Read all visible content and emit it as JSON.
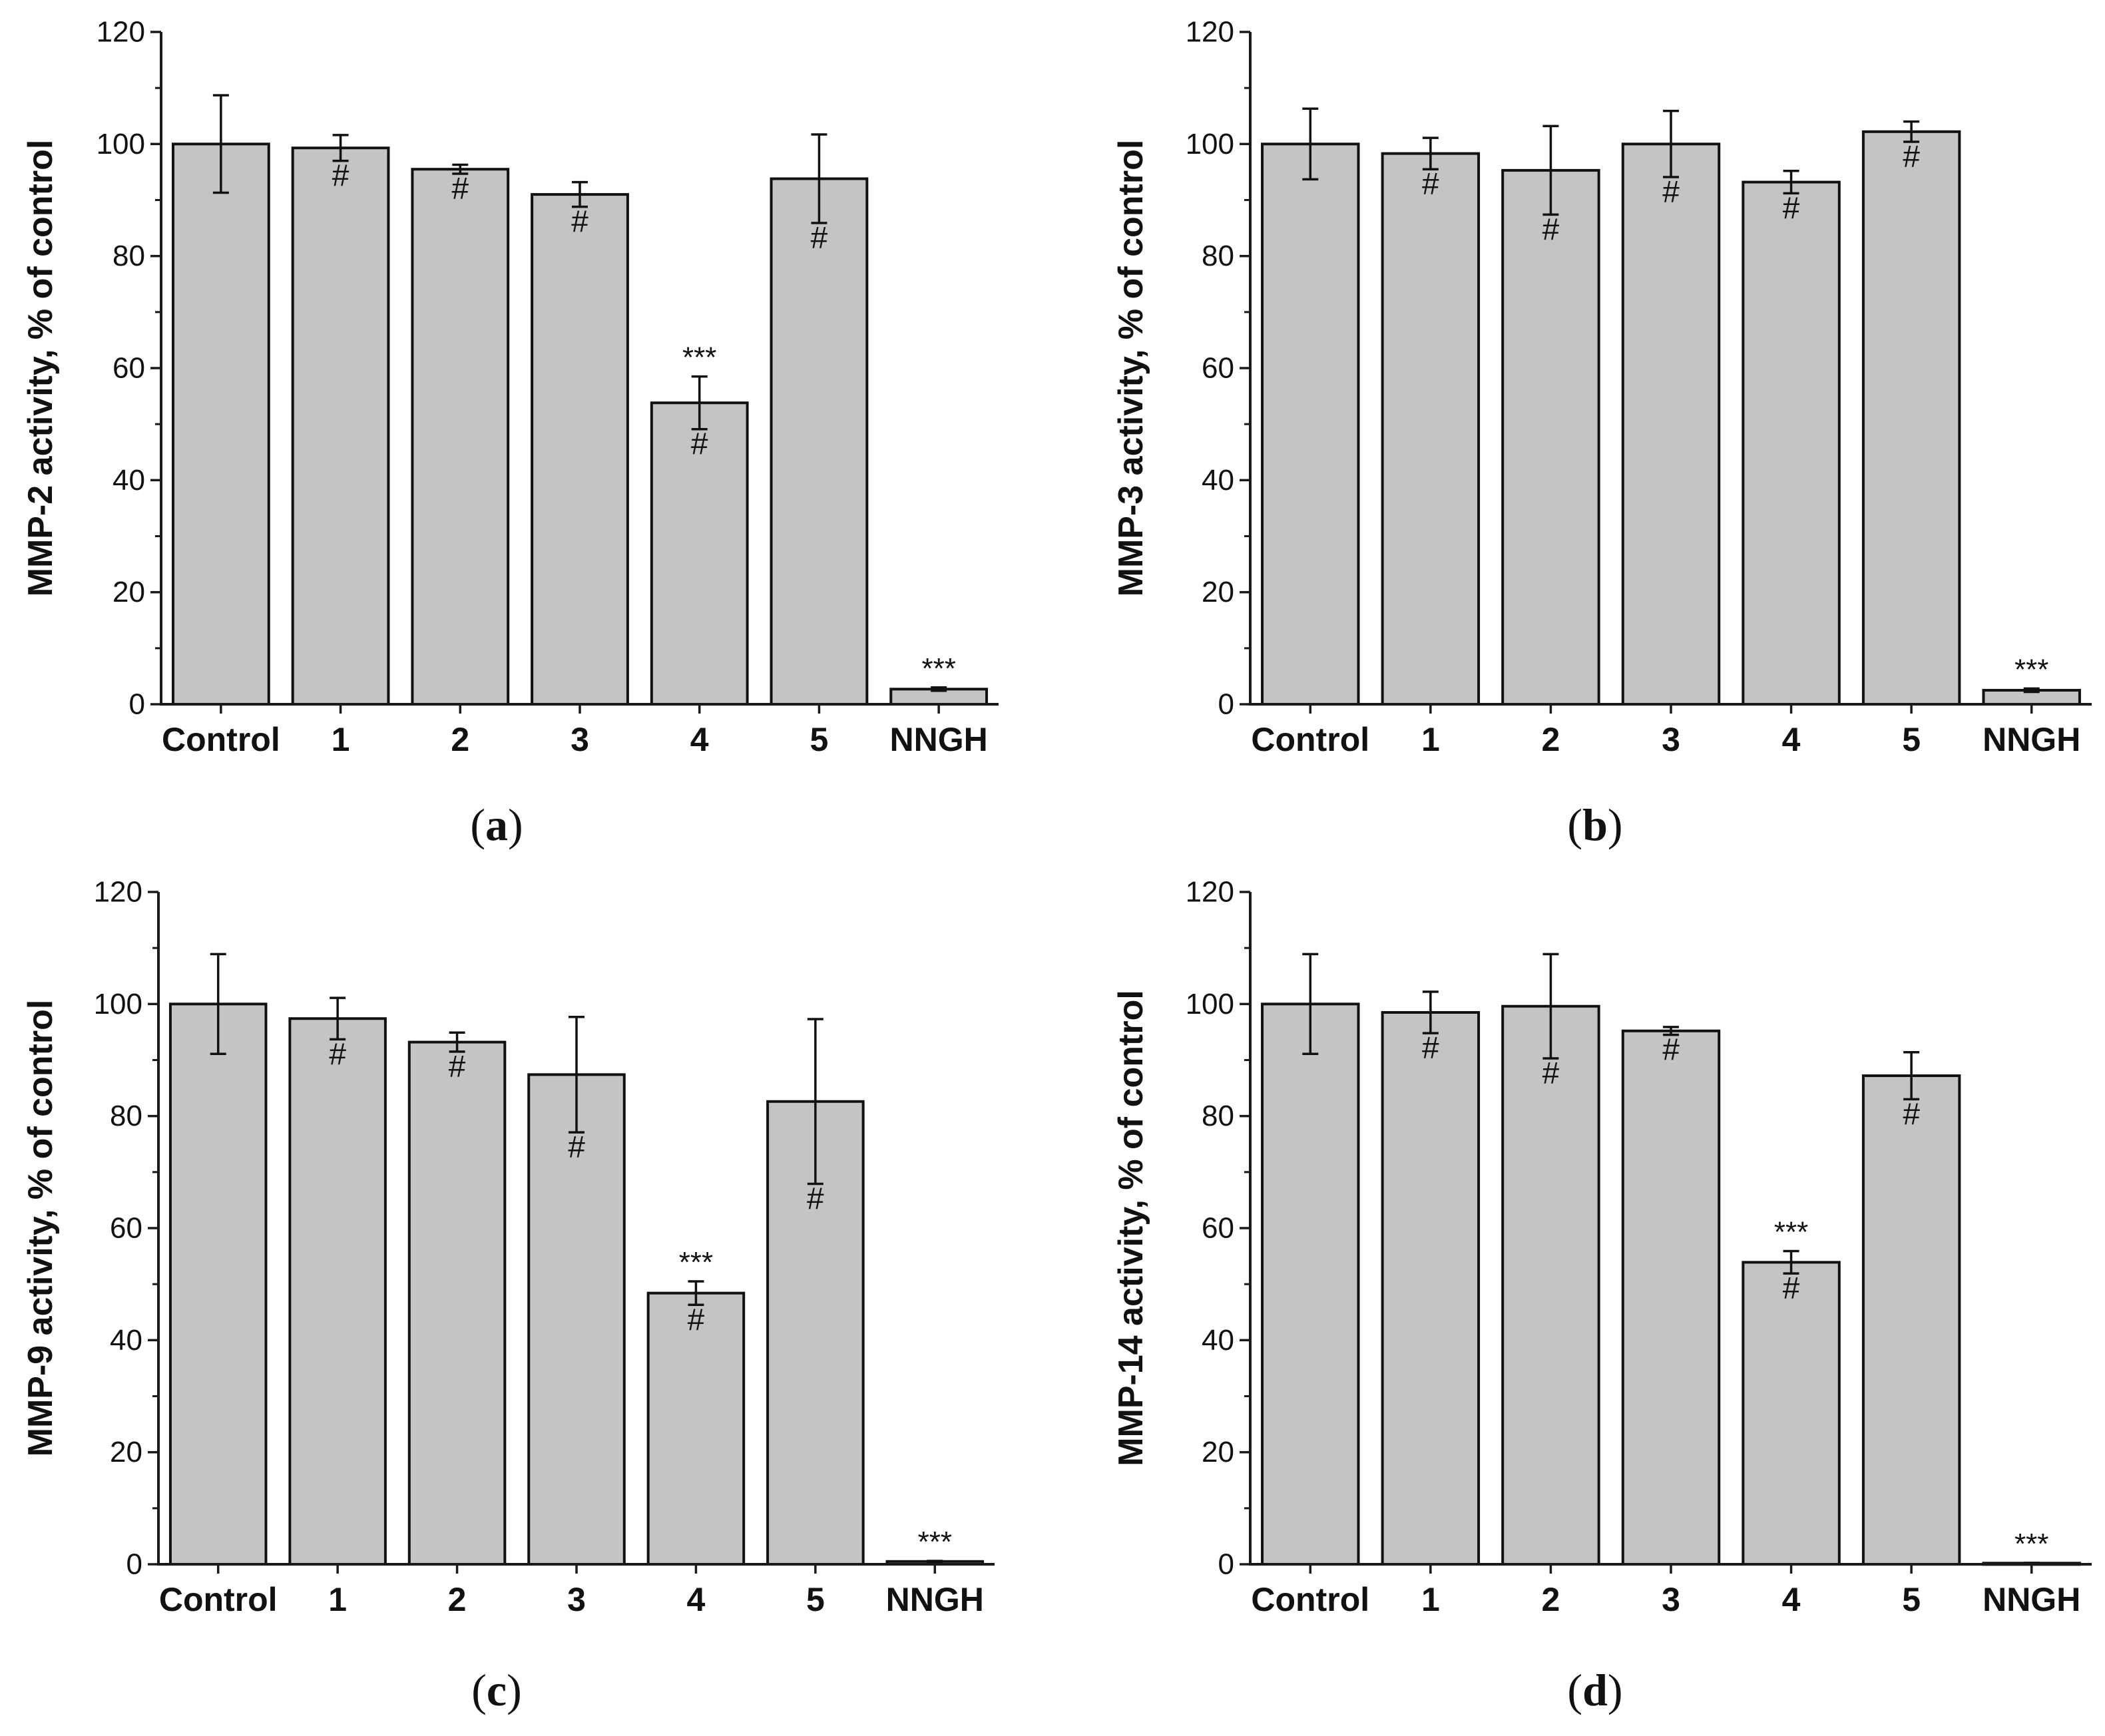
{
  "chart_data": [
    {
      "type": "bar",
      "panel_label": "a",
      "ylabel": "MMP-2 activity, % of control",
      "ylim": [
        0,
        120
      ],
      "ytick_step": 20,
      "categories": [
        "Control",
        "1",
        "2",
        "3",
        "4",
        "5",
        "NNGH"
      ],
      "values": [
        100,
        99.3,
        95.5,
        91.0,
        53.8,
        93.8,
        2.7
      ],
      "errors": [
        8.7,
        2.3,
        0.8,
        2.2,
        4.7,
        7.9,
        0.3
      ],
      "hash": [
        "",
        "#",
        "#",
        "#",
        "#",
        "#",
        ""
      ],
      "stars": [
        "",
        "",
        "",
        "",
        "***",
        "",
        "***"
      ]
    },
    {
      "type": "bar",
      "panel_label": "b",
      "ylabel": "MMP-3 activity, % of control",
      "ylim": [
        0,
        120
      ],
      "ytick_step": 20,
      "categories": [
        "Control",
        "1",
        "2",
        "3",
        "4",
        "5",
        "NNGH"
      ],
      "values": [
        100,
        98.3,
        95.3,
        100.0,
        93.2,
        102.2,
        2.5
      ],
      "errors": [
        6.3,
        2.8,
        7.9,
        5.9,
        2.0,
        1.8,
        0.3
      ],
      "hash": [
        "",
        "#",
        "#",
        "#",
        "#",
        "#",
        ""
      ],
      "stars": [
        "",
        "",
        "",
        "",
        "",
        "",
        "***"
      ]
    },
    {
      "type": "bar",
      "panel_label": "c",
      "ylabel": "MMP-9 activity, % of control",
      "ylim": [
        0,
        120
      ],
      "ytick_step": 20,
      "categories": [
        "Control",
        "1",
        "2",
        "3",
        "4",
        "5",
        "NNGH"
      ],
      "values": [
        100,
        97.4,
        93.2,
        87.4,
        48.4,
        82.6,
        0.5
      ],
      "errors": [
        8.9,
        3.7,
        1.7,
        10.3,
        2.1,
        14.7,
        0.1
      ],
      "hash": [
        "",
        "#",
        "#",
        "#",
        "#",
        "#",
        ""
      ],
      "stars": [
        "",
        "",
        "",
        "",
        "***",
        "",
        "***"
      ]
    },
    {
      "type": "bar",
      "panel_label": "d",
      "ylabel": "MMP-14 activity, % of control",
      "ylim": [
        0,
        120
      ],
      "ytick_step": 20,
      "categories": [
        "Control",
        "1",
        "2",
        "3",
        "4",
        "5",
        "NNGH"
      ],
      "values": [
        100,
        98.5,
        99.6,
        95.2,
        53.9,
        87.2,
        0.2
      ],
      "errors": [
        8.9,
        3.7,
        9.3,
        0.7,
        2.0,
        4.2,
        0.05
      ],
      "hash": [
        "",
        "#",
        "#",
        "#",
        "#",
        "#",
        ""
      ],
      "stars": [
        "",
        "",
        "",
        "",
        "***",
        "",
        "***"
      ]
    }
  ]
}
